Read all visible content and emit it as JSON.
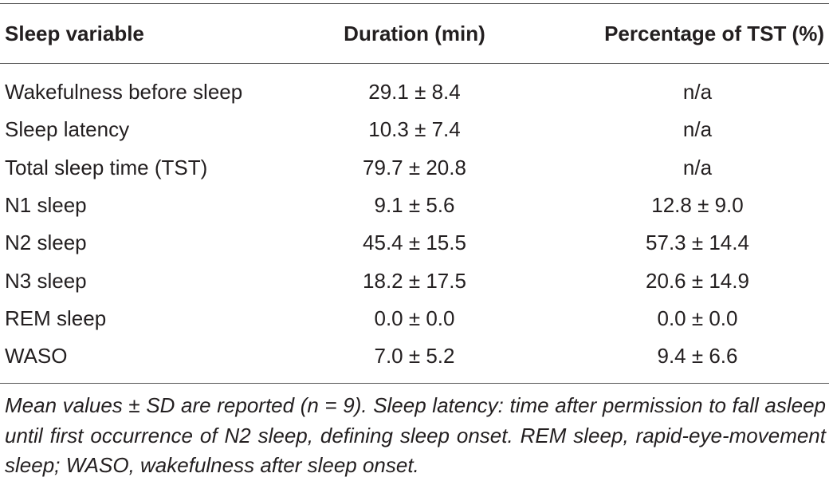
{
  "table": {
    "headers": {
      "variable": "Sleep variable",
      "duration": "Duration (min)",
      "percentage": "Percentage of TST (%)"
    },
    "rows": [
      {
        "variable": "Wakefulness before sleep",
        "duration": "29.1 ± 8.4",
        "percentage": "n/a"
      },
      {
        "variable": "Sleep latency",
        "duration": "10.3 ± 7.4",
        "percentage": "n/a"
      },
      {
        "variable": "Total sleep time (TST)",
        "duration": "79.7 ± 20.8",
        "percentage": "n/a"
      },
      {
        "variable": "N1 sleep",
        "duration": "9.1 ± 5.6",
        "percentage": "12.8 ± 9.0"
      },
      {
        "variable": "N2 sleep",
        "duration": "45.4 ± 15.5",
        "percentage": "57.3 ± 14.4"
      },
      {
        "variable": "N3 sleep",
        "duration": "18.2 ± 17.5",
        "percentage": "20.6 ± 14.9"
      },
      {
        "variable": "REM sleep",
        "duration": "0.0 ± 0.0",
        "percentage": "0.0 ± 0.0"
      },
      {
        "variable": "WASO",
        "duration": "7.0 ± 5.2",
        "percentage": "9.4 ± 6.6"
      }
    ]
  },
  "footnote": "Mean values ± SD are reported (n = 9). Sleep latency: time after permission to fall asleep until first occurrence of N2 sleep, defining sleep onset. REM sleep, rapid-eye-movement sleep; WASO, wakefulness after sleep onset."
}
